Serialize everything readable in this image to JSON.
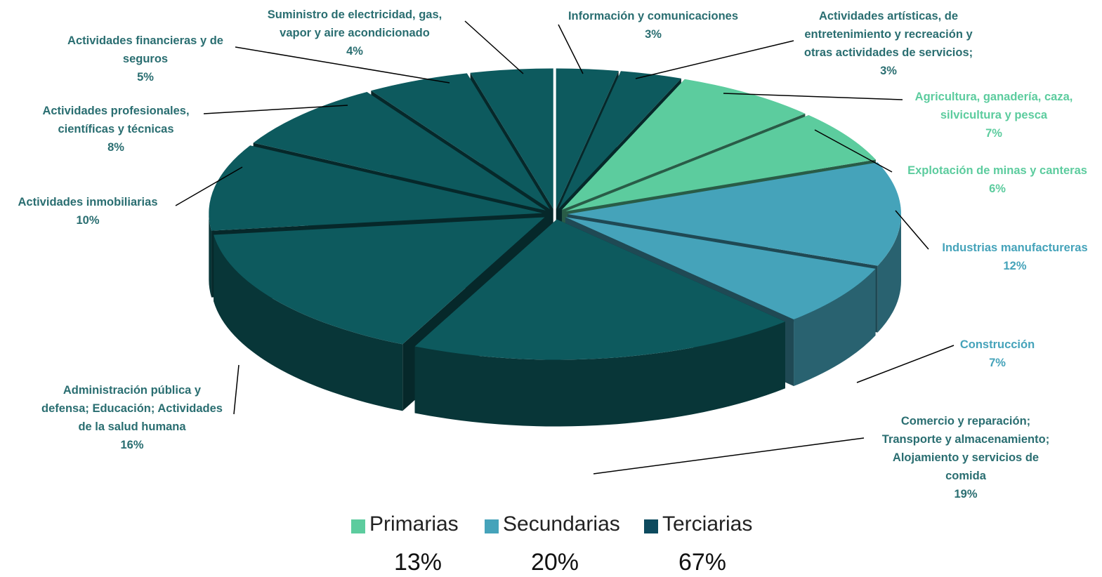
{
  "chart_data": {
    "type": "pie3d",
    "categories": [
      "Información y comunicaciones",
      "Actividades artísticas, de\nentretenimiento y recreación y\notras actividades de servicios;",
      "Agricultura, ganadería, caza,\nsilvicultura y pesca",
      "Explotación de minas y canteras",
      "Industrias manufactureras",
      "Construcción",
      "Comercio y reparación;\nTransporte y almacenamiento;\nAlojamiento y servicios de\ncomida",
      "Administración pública y\ndefensa; Educación; Actividades\nde la salud humana",
      "Actividades inmobiliarias",
      "Actividades profesionales,\ncientíficas y técnicas",
      "Actividades financieras y de\nseguros",
      "Suministro de electricidad, gas,\nvapor y aire acondicionado"
    ],
    "values": [
      3,
      3,
      7,
      6,
      12,
      7,
      19,
      16,
      10,
      8,
      5,
      4
    ],
    "value_labels": [
      "3%",
      "3%",
      "7%",
      "6%",
      "12%",
      "7%",
      "19%",
      "16%",
      "10%",
      "8%",
      "5%",
      "4%"
    ],
    "colors": [
      "#0d5a5e",
      "#0d5a5e",
      "#5ccc9e",
      "#5ccc9e",
      "#45a3ba",
      "#45a3ba",
      "#0d5a5e",
      "#0d5a5e",
      "#0d5a5e",
      "#0d5a5e",
      "#0d5a5e",
      "#0d5a5e"
    ],
    "legend": {
      "names": [
        "Primarias",
        "Secundarias",
        "Terciarias"
      ],
      "colors": [
        "#5ccc9e",
        "#45a3ba",
        "#0d4a5e"
      ],
      "values": [
        13,
        20,
        67
      ],
      "value_labels": [
        "13%",
        "20%",
        "67%"
      ]
    }
  }
}
